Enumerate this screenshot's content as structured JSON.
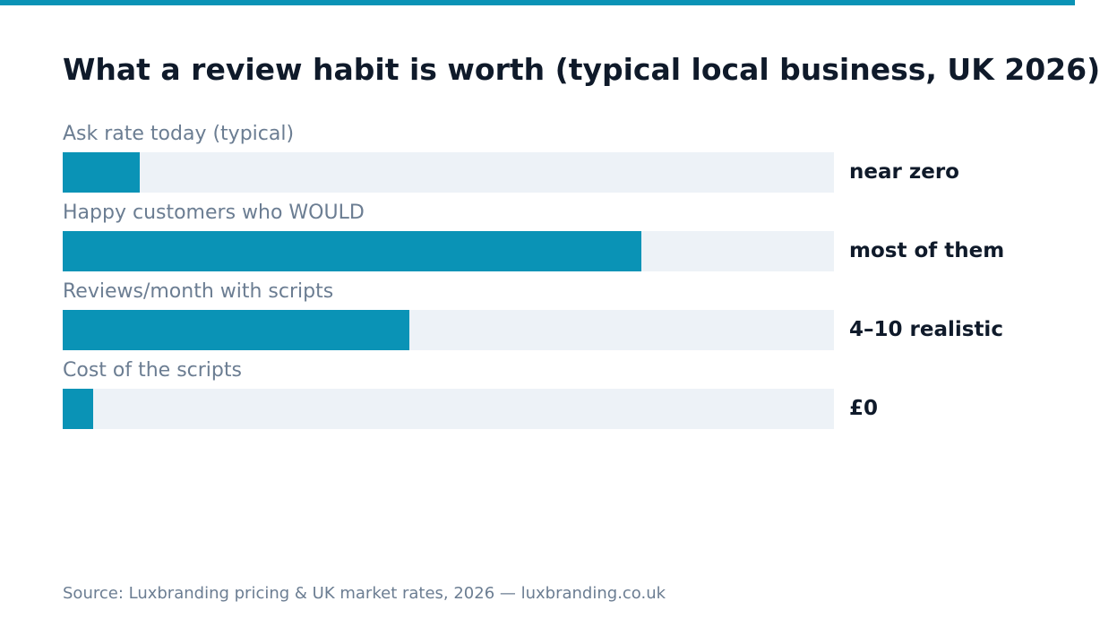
{
  "colors": {
    "accent": "#0a93b6",
    "track": "#edf2f7",
    "title": "#0f1a2a",
    "muted": "#6b7d92"
  },
  "chart_data": {
    "type": "bar",
    "orientation": "horizontal",
    "title": "What a review habit is worth (typical local business, UK 2026)",
    "categories": [
      "Ask rate today (typical)",
      "Happy customers who WOULD",
      "Reviews/month with scripts",
      "Cost of the scripts"
    ],
    "values": [
      0.1,
      0.75,
      0.45,
      0.04
    ],
    "value_labels": [
      "near zero",
      "most of them",
      "4–10 realistic",
      "£0"
    ],
    "xlim": [
      0,
      1
    ],
    "grid": false,
    "source": "Source: Luxbranding pricing & UK market rates, 2026 — luxbranding.co.uk"
  }
}
